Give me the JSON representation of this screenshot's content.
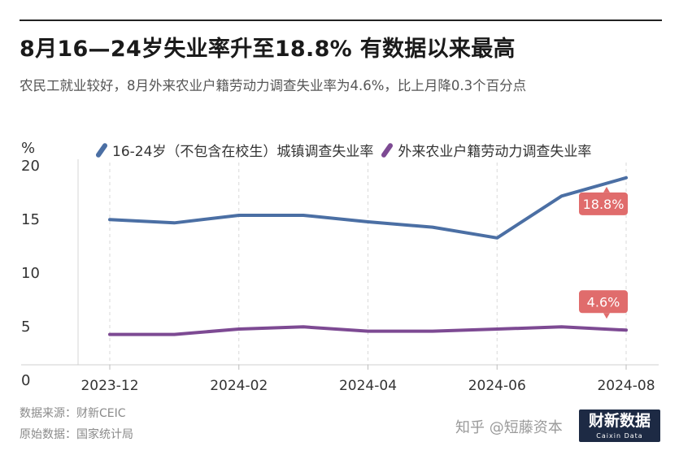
{
  "header": {
    "title": "8月16—24岁失业率升至18.8% 有数据以来最高",
    "subtitle": "农民工就业较好，8月外来农业户籍劳动力调查失业率为4.6%，比上月降0.3个百分点"
  },
  "chart_data": {
    "type": "line",
    "unit": "%",
    "x": [
      "2023-12",
      "2024-01",
      "2024-02",
      "2024-03",
      "2024-04",
      "2024-05",
      "2024-06",
      "2024-07",
      "2024-08"
    ],
    "x_tick_labels": [
      "2023-12",
      "2024-02",
      "2024-04",
      "2024-06",
      "2024-08"
    ],
    "ylim": [
      0,
      20
    ],
    "y_ticks": [
      "20",
      "15",
      "10",
      "5",
      "0"
    ],
    "grid": "vertical dashed",
    "legend_position": "top",
    "series": [
      {
        "name": "16-24岁（不包含在校生）城镇调查失业率",
        "color": "#4b6fa4",
        "values": [
          14.9,
          14.6,
          15.3,
          15.3,
          14.7,
          14.2,
          13.2,
          17.1,
          18.8
        ],
        "end_label": "18.8%"
      },
      {
        "name": "外来农业户籍劳动力调查失业率",
        "color": "#7d4a93",
        "values": [
          4.2,
          4.2,
          4.7,
          4.9,
          4.5,
          4.5,
          4.7,
          4.9,
          4.6
        ],
        "end_label": "4.6%"
      }
    ],
    "label_color": "#e06c6c"
  },
  "footer": {
    "source": "数据来源：财新CEIC",
    "original": "原始数据：国家统计局",
    "platform_mark": "知乎 @短藤资本",
    "brand": "财新数据",
    "brand_sub": "Caixin Data"
  }
}
